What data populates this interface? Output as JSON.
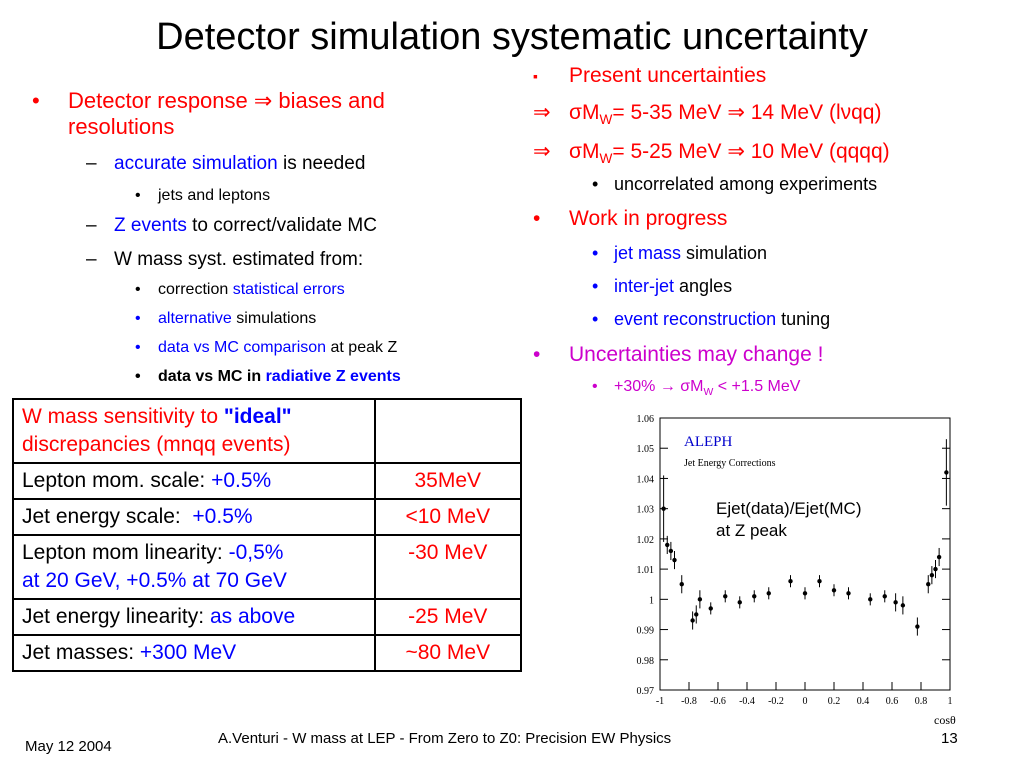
{
  "title": "Detector simulation systematic uncertainty",
  "left": {
    "b1": {
      "bullet": "•",
      "red": "Detector response ⇒ biases and",
      "red2": "resolutions"
    },
    "s1": {
      "dash": "–",
      "blue": "accurate simulation",
      "rest": " is needed"
    },
    "s1a": {
      "bullet": "•",
      "text": "jets and leptons"
    },
    "s2": {
      "dash": "–",
      "blue": "Z events",
      "rest": " to correct/validate MC"
    },
    "s3": {
      "dash": "–",
      "text": "W mass syst. estimated from:"
    },
    "s3a": {
      "bullet": "•",
      "pre": "correction ",
      "blue": "statistical errors"
    },
    "s3b": {
      "bullet": "•",
      "blue": "alternative",
      "rest": " simulations"
    },
    "s3c": {
      "bullet": "•",
      "blue": "data vs MC comparison",
      "rest": " at peak Z"
    },
    "s3d": {
      "bullet": "•",
      "pre": "data vs MC in ",
      "blue": "radiative Z events"
    }
  },
  "right": {
    "r1": {
      "bullet": "▪",
      "text": "Present uncertainties"
    },
    "r2": {
      "arrow": "⇒",
      "sigma": "σM",
      "sub": "W",
      "text": "= 5-35 MeV ⇒ 14 MeV (lνqq)"
    },
    "r3": {
      "arrow": "⇒",
      "sigma": "σM",
      "sub": "W",
      "text": "= 5-25 MeV ⇒ 10 MeV (qqqq)"
    },
    "r4": {
      "bullet": "•",
      "text": "uncorrelated among experiments"
    },
    "r5": {
      "bullet": "•",
      "text": "Work in progress"
    },
    "r6": {
      "bullet": "•",
      "blue": "jet mass",
      "rest": " simulation"
    },
    "r7": {
      "bullet": "•",
      "blue": "inter-jet",
      "rest": " angles"
    },
    "r8": {
      "bullet": "•",
      "blue": "event reconstruction",
      "rest": " tuning"
    },
    "r9": {
      "bullet": "•",
      "text": "Uncertainties may change !"
    },
    "r10": {
      "bullet": "•",
      "pre": "+30% → σM",
      "sub": "W",
      "post": " < +1.5 MeV"
    }
  },
  "table": {
    "header_pre": "W mass sensitivity to ",
    "header_quote": "\"ideal\"",
    "header_post": "discrepancies (mnqq events)",
    "rows": [
      {
        "label": "Lepton mom. scale: ",
        "blue": "+0.5%",
        "blue2": "",
        "value": "35MeV"
      },
      {
        "label": "Jet energy scale:  ",
        "blue": "+0.5%",
        "blue2": "",
        "value": "<10 MeV"
      },
      {
        "label": "Lepton mom linearity: ",
        "blue": "-0,5%",
        "blue2": "at 20 GeV, +0.5% at 70 GeV",
        "value": "-30 MeV"
      },
      {
        "label": "Jet energy linearity: ",
        "blue": "as above",
        "blue2": "",
        "value": "-25 MeV"
      },
      {
        "label": "Jet masses: ",
        "blue": "+300 MeV",
        "blue2": "",
        "value": "~80 MeV"
      }
    ]
  },
  "chart_data": {
    "type": "scatter",
    "title": "ALEPH",
    "subtitle": "Jet Energy Corrections",
    "annotation": [
      "Ejet(data)/Ejet(MC)",
      "at Z peak"
    ],
    "xlabel": "cosθ",
    "xlim": [
      -1,
      1
    ],
    "ylim": [
      0.97,
      1.06
    ],
    "xticks": [
      -1,
      -0.8,
      -0.6,
      -0.4,
      -0.2,
      0,
      0.2,
      0.4,
      0.6,
      0.8,
      1
    ],
    "yticks": [
      0.97,
      0.98,
      0.99,
      1,
      1.01,
      1.02,
      1.03,
      1.04,
      1.05,
      1.06
    ],
    "xtick_labels": [
      "-1",
      "-0.8",
      "-0.6",
      "-0.4",
      "-0.2",
      "0",
      "0.2",
      "0.4",
      "0.6",
      "0.8",
      "1"
    ],
    "ytick_labels": [
      "0.97",
      "0.98",
      "0.99",
      "1",
      "1.01",
      "1.02",
      "1.03",
      "1.04",
      "1.05",
      "1.06"
    ],
    "points": [
      {
        "x": -0.975,
        "y": 1.03,
        "err": 0.011
      },
      {
        "x": -0.95,
        "y": 1.018,
        "err": 0.003
      },
      {
        "x": -0.925,
        "y": 1.016,
        "err": 0.003
      },
      {
        "x": -0.9,
        "y": 1.013,
        "err": 0.003
      },
      {
        "x": -0.85,
        "y": 1.005,
        "err": 0.003
      },
      {
        "x": -0.775,
        "y": 0.993,
        "err": 0.003
      },
      {
        "x": -0.75,
        "y": 0.995,
        "err": 0.003
      },
      {
        "x": -0.725,
        "y": 1.0,
        "err": 0.003
      },
      {
        "x": -0.65,
        "y": 0.997,
        "err": 0.002
      },
      {
        "x": -0.55,
        "y": 1.001,
        "err": 0.002
      },
      {
        "x": -0.45,
        "y": 0.999,
        "err": 0.002
      },
      {
        "x": -0.35,
        "y": 1.001,
        "err": 0.002
      },
      {
        "x": -0.25,
        "y": 1.002,
        "err": 0.002
      },
      {
        "x": -0.1,
        "y": 1.006,
        "err": 0.002
      },
      {
        "x": 0.0,
        "y": 1.002,
        "err": 0.002
      },
      {
        "x": 0.1,
        "y": 1.006,
        "err": 0.002
      },
      {
        "x": 0.2,
        "y": 1.003,
        "err": 0.002
      },
      {
        "x": 0.3,
        "y": 1.002,
        "err": 0.002
      },
      {
        "x": 0.45,
        "y": 1.0,
        "err": 0.002
      },
      {
        "x": 0.55,
        "y": 1.001,
        "err": 0.002
      },
      {
        "x": 0.625,
        "y": 0.999,
        "err": 0.003
      },
      {
        "x": 0.675,
        "y": 0.998,
        "err": 0.003
      },
      {
        "x": 0.775,
        "y": 0.991,
        "err": 0.003
      },
      {
        "x": 0.85,
        "y": 1.005,
        "err": 0.003
      },
      {
        "x": 0.875,
        "y": 1.008,
        "err": 0.003
      },
      {
        "x": 0.9,
        "y": 1.01,
        "err": 0.003
      },
      {
        "x": 0.925,
        "y": 1.014,
        "err": 0.003
      },
      {
        "x": 0.975,
        "y": 1.042,
        "err": 0.011
      }
    ]
  },
  "footer": {
    "date": "May 12 2004",
    "center": "A.Venturi - W mass at LEP - From Zero to Z0: Precision EW Physics",
    "page": "13"
  }
}
